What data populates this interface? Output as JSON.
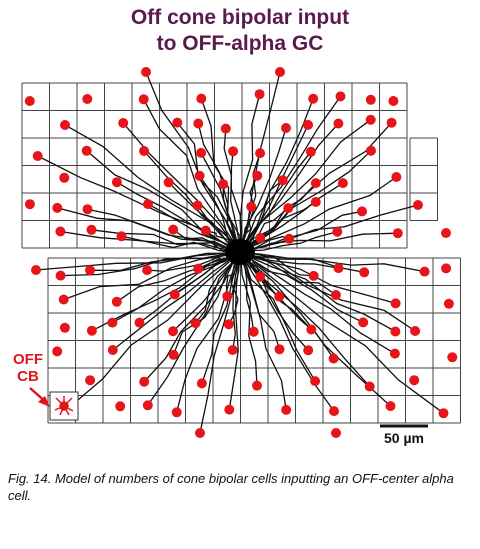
{
  "figure": {
    "title": [
      "Off cone bipolar input",
      "to OFF-alpha GC"
    ],
    "cell_label": [
      "OFF",
      "CB"
    ],
    "scale_bar": "50 µm"
  },
  "caption": "Fig. 14. Model of numbers of cone bipolar cells inputting an OFF-center alpha cell."
}
